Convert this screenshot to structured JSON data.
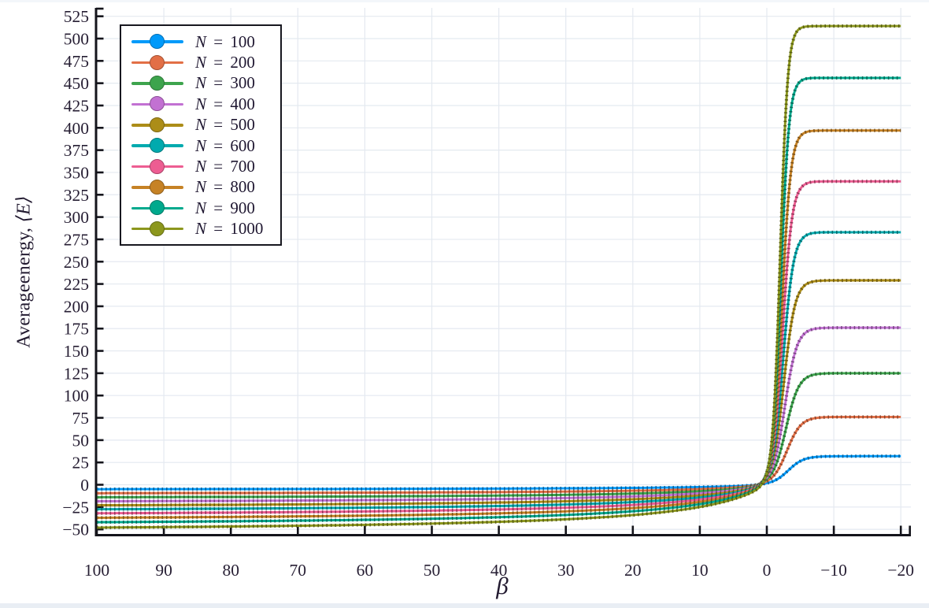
{
  "chart_data": {
    "type": "line",
    "title": "",
    "xlabel": "β",
    "ylabel_text": "Averageenergy,",
    "ylabel_math": "⟨E⟩",
    "x_axis_reversed": true,
    "x_range": [
      100,
      -20
    ],
    "y_range": [
      -50,
      525
    ],
    "grid": true,
    "legend_position": "top-left",
    "x_ticks": {
      "values": [
        100,
        90,
        80,
        70,
        60,
        50,
        40,
        30,
        20,
        10,
        0,
        -10,
        -20
      ],
      "labels": [
        "100",
        "90",
        "80",
        "70",
        "60",
        "50",
        "40",
        "30",
        "20",
        "10",
        "0",
        "−10",
        "−20"
      ]
    },
    "y_ticks": {
      "values": [
        -50,
        -25,
        0,
        25,
        50,
        75,
        100,
        125,
        150,
        175,
        200,
        225,
        250,
        275,
        300,
        325,
        350,
        375,
        400,
        425,
        450,
        475,
        500,
        525
      ],
      "labels": [
        "−50",
        "−25",
        "0",
        "25",
        "50",
        "75",
        "100",
        "125",
        "150",
        "175",
        "200",
        "225",
        "250",
        "275",
        "300",
        "325",
        "350",
        "375",
        "400",
        "425",
        "450",
        "475",
        "500",
        "525"
      ]
    },
    "curve_fit": {
      "positive_beta_shape_c": 11.5,
      "note_positive": "E ≈ L·β/(β+c) for β ≥ 0, L scaled so E(100) matches E_at_beta_100",
      "note_negative": "E ≈ plateau/(1+exp((β+rise_mid)/rise_width)) for β < 0"
    },
    "series": [
      {
        "label_var": "N",
        "label_eq": "=",
        "label_value": "100",
        "N": 100,
        "color": "#009AFA",
        "E_at_beta_100": -5.0,
        "E_plateau_neg_beta": 32,
        "rise_mid": 3.2,
        "rise_width": 1.15
      },
      {
        "label_var": "N",
        "label_eq": "=",
        "label_value": "200",
        "N": 200,
        "color": "#E26F46",
        "E_at_beta_100": -9.5,
        "E_plateau_neg_beta": 76,
        "rise_mid": 3.0,
        "rise_width": 1.05
      },
      {
        "label_var": "N",
        "label_eq": "=",
        "label_value": "300",
        "N": 300,
        "color": "#3DA44D",
        "E_at_beta_100": -14.0,
        "E_plateau_neg_beta": 125,
        "rise_mid": 2.85,
        "rise_width": 0.97
      },
      {
        "label_var": "N",
        "label_eq": "=",
        "label_value": "400",
        "N": 400,
        "color": "#C271D2",
        "E_at_beta_100": -18.5,
        "E_plateau_neg_beta": 176,
        "rise_mid": 2.7,
        "rise_width": 0.9
      },
      {
        "label_var": "N",
        "label_eq": "=",
        "label_value": "500",
        "N": 500,
        "color": "#AC8D18",
        "E_at_beta_100": -23.0,
        "E_plateau_neg_beta": 229,
        "rise_mid": 2.55,
        "rise_width": 0.84
      },
      {
        "label_var": "N",
        "label_eq": "=",
        "label_value": "600",
        "N": 600,
        "color": "#00AAAE",
        "E_at_beta_100": -27.5,
        "E_plateau_neg_beta": 283,
        "rise_mid": 2.45,
        "rise_width": 0.78
      },
      {
        "label_var": "N",
        "label_eq": "=",
        "label_value": "700",
        "N": 700,
        "color": "#ED5D92",
        "E_at_beta_100": -32.0,
        "E_plateau_neg_beta": 340,
        "rise_mid": 2.35,
        "rise_width": 0.72
      },
      {
        "label_var": "N",
        "label_eq": "=",
        "label_value": "800",
        "N": 800,
        "color": "#C68225",
        "E_at_beta_100": -37.0,
        "E_plateau_neg_beta": 397,
        "rise_mid": 2.25,
        "rise_width": 0.67
      },
      {
        "label_var": "N",
        "label_eq": "=",
        "label_value": "900",
        "N": 900,
        "color": "#00A98D",
        "E_at_beta_100": -42.0,
        "E_plateau_neg_beta": 456,
        "rise_mid": 2.1,
        "rise_width": 0.61
      },
      {
        "label_var": "N",
        "label_eq": "=",
        "label_value": "1000",
        "N": 1000,
        "color": "#8C971D",
        "E_at_beta_100": -48.0,
        "E_plateau_neg_beta": 514,
        "rise_mid": 2.0,
        "rise_width": 0.56
      }
    ]
  },
  "colors": {
    "axis": "#14141b",
    "tick_label": "#261e33",
    "grid": "#e4e9f0",
    "background": "#ffffff",
    "legend_border": "#17171f"
  }
}
